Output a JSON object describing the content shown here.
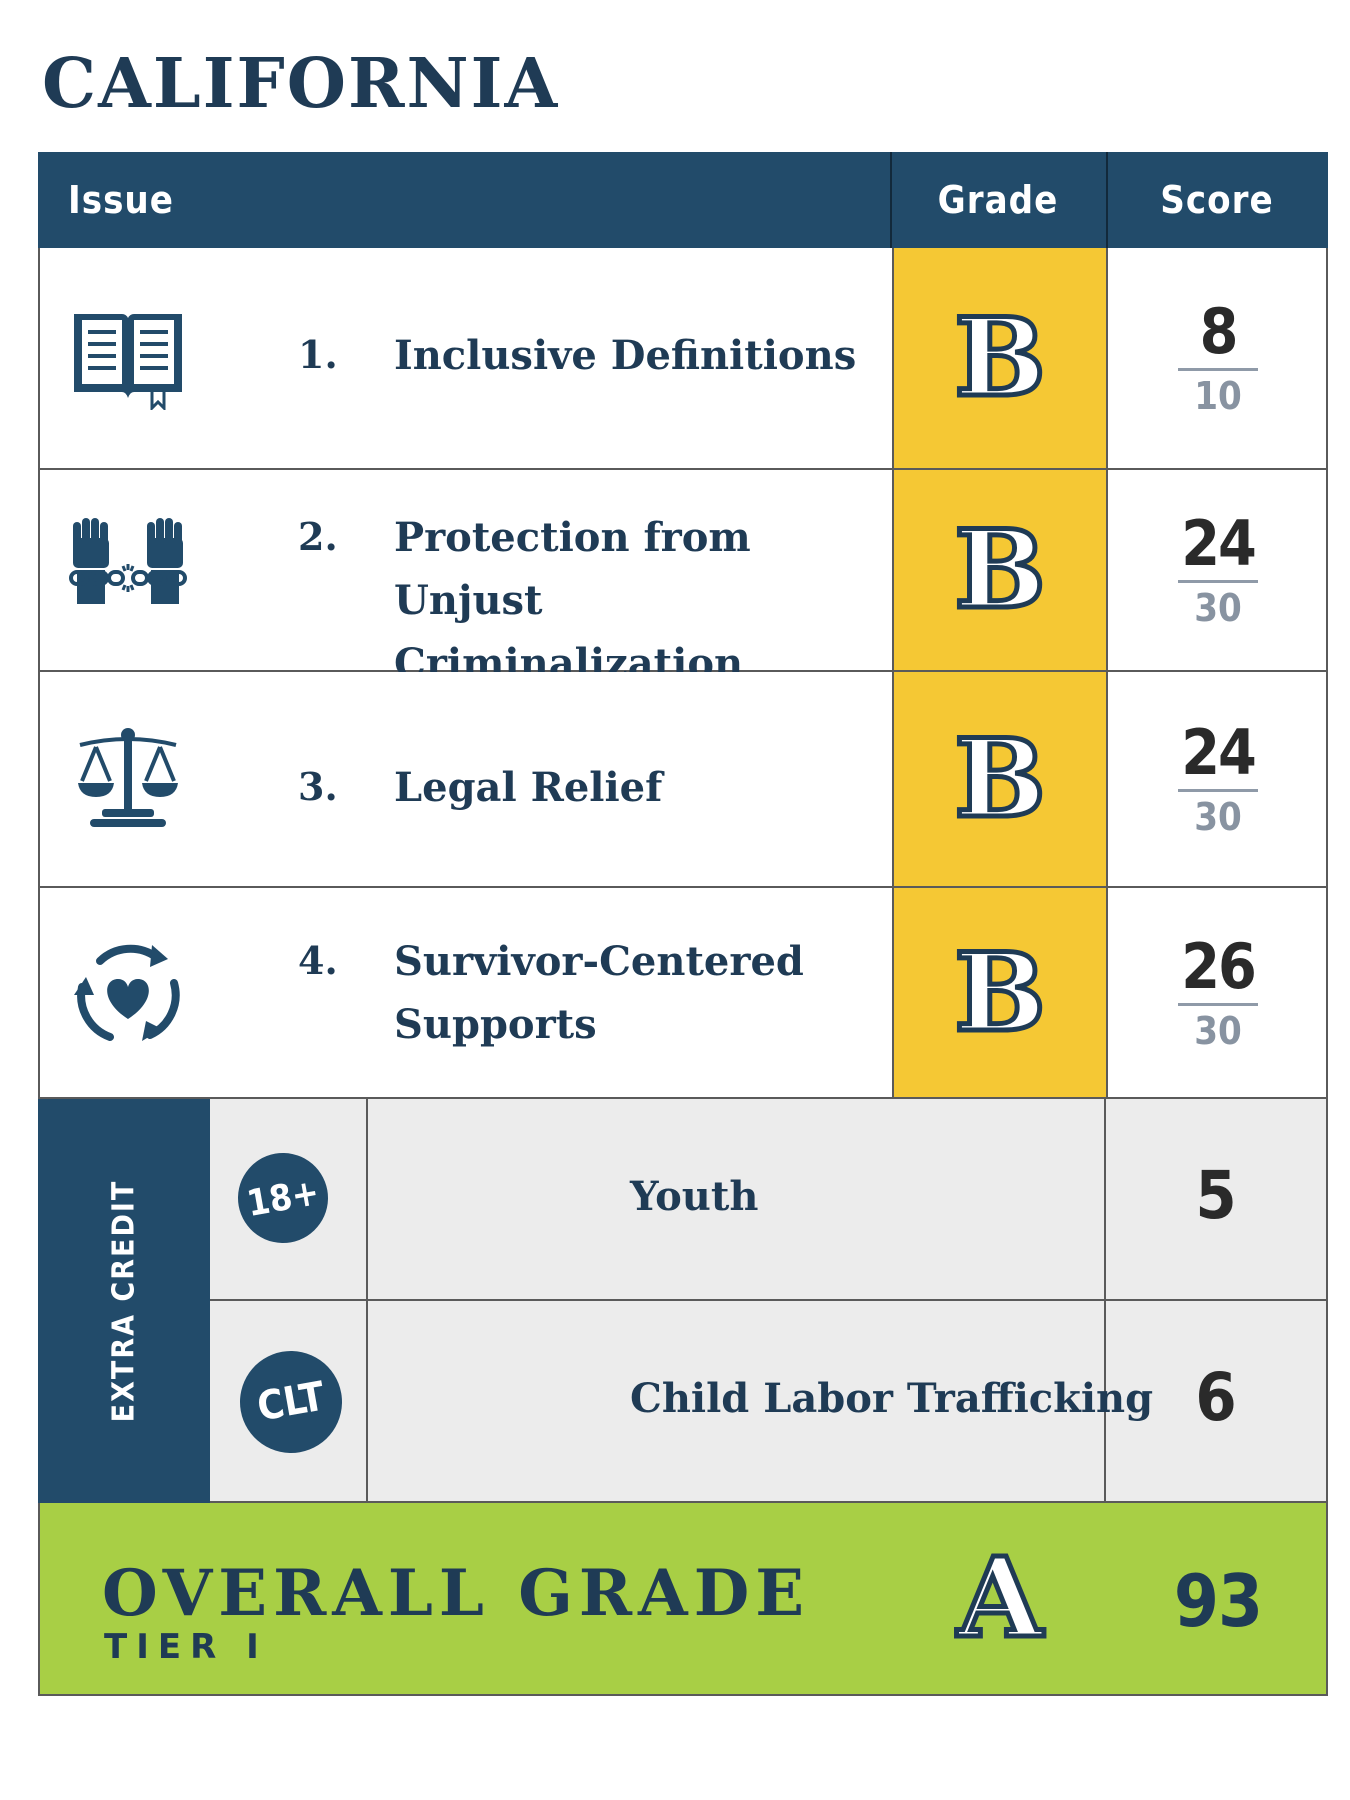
{
  "title": "CALIFORNIA",
  "header": {
    "issue": "Issue",
    "grade": "Grade",
    "score": "Score"
  },
  "issues": [
    {
      "number": "1.",
      "label": "Inclusive Definitions",
      "icon": "book-icon",
      "grade": "B",
      "score": "8",
      "max": "10"
    },
    {
      "number": "2.",
      "label": "Protection from Unjust Criminalization",
      "icon": "raised-fists-broken-chain-icon",
      "grade": "B",
      "score": "24",
      "max": "30"
    },
    {
      "number": "3.",
      "label": "Legal Relief",
      "icon": "scales-of-justice-icon",
      "grade": "B",
      "score": "24",
      "max": "30"
    },
    {
      "number": "4.",
      "label": "Survivor-Centered Supports",
      "icon": "heart-cycle-icon",
      "grade": "B",
      "score": "26",
      "max": "30"
    }
  ],
  "extra_credit": {
    "label": "EXTRA CREDIT",
    "items": [
      {
        "badge": "18+",
        "label": "Youth",
        "score": "5"
      },
      {
        "badge": "CLT",
        "label": "Child Labor Trafficking",
        "score": "6"
      }
    ]
  },
  "overall": {
    "title": "OVERALL GRADE",
    "tier": "TIER I",
    "grade": "A",
    "score": "93"
  },
  "colors": {
    "navy": "#224b6a",
    "grade_yellow": "#f5c834",
    "overall_green": "#a8cf45",
    "extra_gray": "#ececec"
  }
}
